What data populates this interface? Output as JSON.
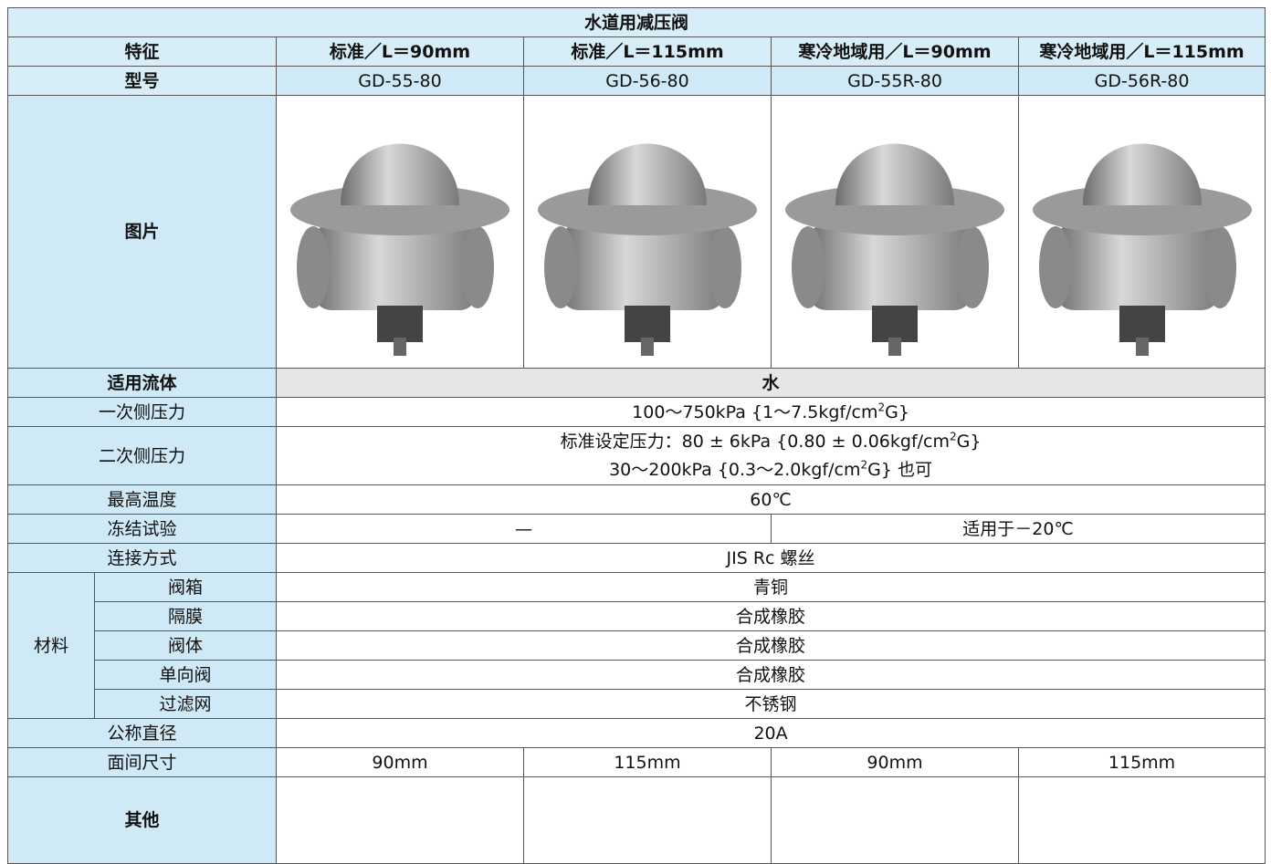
{
  "title": "水道用减压阀",
  "features": {
    "label": "特征",
    "values": [
      "标准／L＝90mm",
      "标准／L＝115mm",
      "寒冷地域用／L＝90mm",
      "寒冷地域用／L＝115mm"
    ]
  },
  "models": {
    "label": "型号",
    "values": [
      "GD-55-80",
      "GD-56-80",
      "GD-55R-80",
      "GD-56R-80"
    ]
  },
  "image": {
    "label": "图片"
  },
  "fluid": {
    "label": "适用流体",
    "value": "水"
  },
  "primary_pressure": {
    "label": "一次侧压力",
    "value": [
      "100～750kPa {1～7.5kgf/cm",
      "2",
      "G}"
    ]
  },
  "secondary_pressure": {
    "label": "二次侧压力",
    "line1": [
      "标准设定压力：80 ± 6kPa {0.80 ± 0.06kgf/cm",
      "2",
      "G}"
    ],
    "line2": [
      "30～200kPa {0.3～2.0kgf/cm",
      "2",
      "G} 也可"
    ]
  },
  "max_temperature": {
    "label": "最高温度",
    "value": "60℃"
  },
  "freeze_test": {
    "label": "冻结试验",
    "values": [
      "—",
      "适用于－20℃"
    ]
  },
  "connection": {
    "label": "连接方式",
    "value": "JIS Rc 螺丝"
  },
  "materials": {
    "label": "材料",
    "rows": [
      [
        "阀箱",
        "青铜"
      ],
      [
        "隔膜",
        "合成橡胶"
      ],
      [
        "阀体",
        "合成橡胶"
      ],
      [
        "单向阀",
        "合成橡胶"
      ],
      [
        "过滤网",
        "不锈钢"
      ]
    ]
  },
  "nominal_diameter": {
    "label": "公称直径",
    "value": "20A"
  },
  "face_to_face": {
    "label": "面间尺寸",
    "values": [
      "90mm",
      "115mm",
      "90mm",
      "115mm"
    ]
  },
  "other": {
    "label": "其他"
  }
}
